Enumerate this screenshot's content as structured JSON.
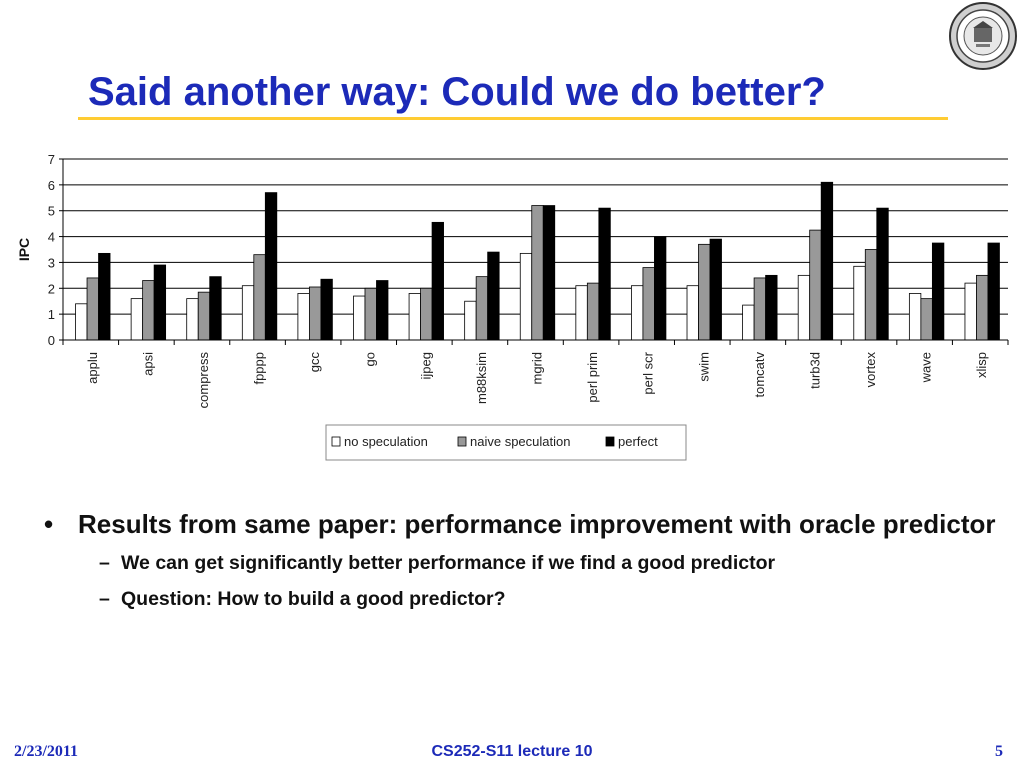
{
  "slide": {
    "title": "Said another way: Could we do better?",
    "bullets": [
      {
        "marker": "•",
        "text": "Results from same paper: performance improvement with oracle predictor",
        "sub": [
          {
            "marker": "–",
            "text": "We can get significantly better performance if we find a good predictor"
          },
          {
            "marker": "–",
            "text": "Question: How to build a good predictor?"
          }
        ]
      }
    ]
  },
  "footer": {
    "date": "2/23/2011",
    "course": "CS252-S11 lecture 10",
    "page": "5"
  },
  "logo": {
    "icon": "university-seal-icon"
  },
  "chart_data": {
    "type": "bar",
    "ylabel": "IPC",
    "xlabel": "",
    "ylim": [
      0,
      7
    ],
    "yticks": [
      0,
      1,
      2,
      3,
      4,
      5,
      6,
      7
    ],
    "grid": true,
    "legend_position": "bottom-center",
    "categories": [
      "applu",
      "apsi",
      "compress",
      "fpppp",
      "gcc",
      "go",
      "ijpeg",
      "m88ksim",
      "mgrid",
      "perl prim",
      "perl scr",
      "swim",
      "tomcatv",
      "turb3d",
      "vortex",
      "wave",
      "xlisp"
    ],
    "series": [
      {
        "name": "no speculation",
        "color": "#ffffff",
        "values": [
          1.4,
          1.6,
          1.6,
          2.1,
          1.8,
          1.7,
          1.8,
          1.5,
          3.35,
          2.1,
          2.1,
          2.1,
          1.35,
          2.5,
          2.85,
          1.8,
          2.2
        ]
      },
      {
        "name": "naive speculation",
        "color": "#999999",
        "values": [
          2.4,
          2.3,
          1.85,
          3.3,
          2.05,
          2.0,
          2.0,
          2.45,
          5.2,
          2.2,
          2.8,
          3.7,
          2.4,
          4.25,
          3.5,
          1.6,
          2.5
        ]
      },
      {
        "name": "perfect",
        "color": "#000000",
        "values": [
          3.35,
          2.9,
          2.45,
          5.7,
          2.35,
          2.3,
          4.55,
          3.4,
          5.2,
          5.1,
          4.0,
          3.9,
          2.5,
          6.1,
          5.1,
          3.75,
          3.75
        ]
      }
    ]
  }
}
